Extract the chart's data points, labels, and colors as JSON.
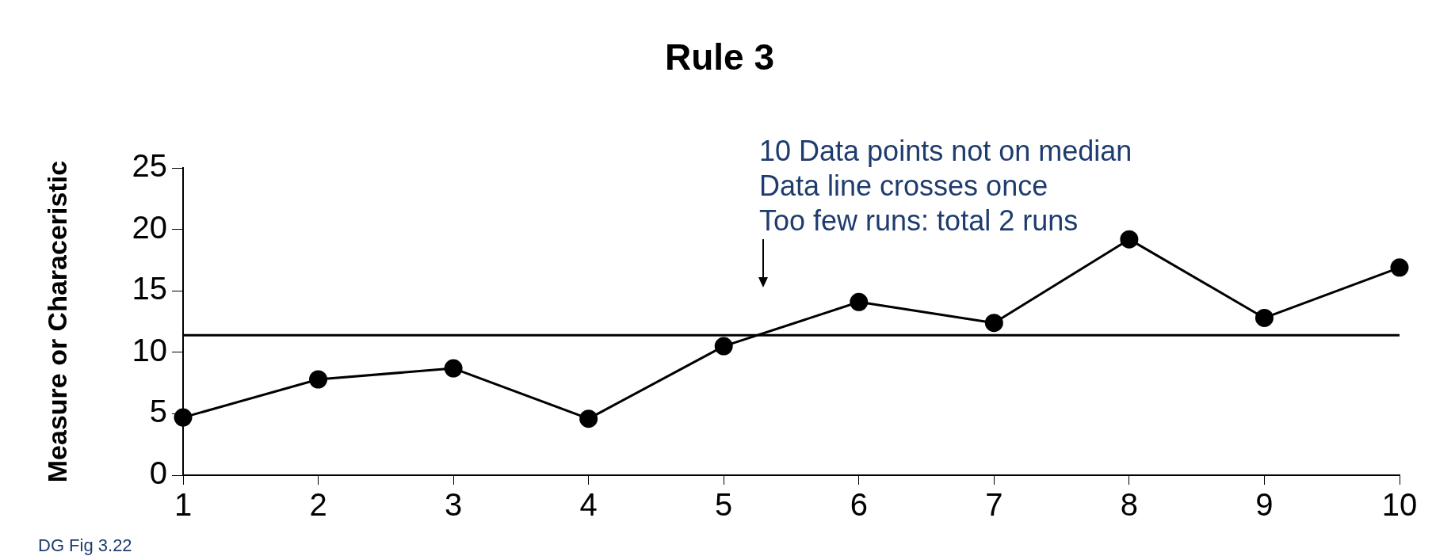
{
  "chart_data": {
    "type": "line",
    "title": "Rule 3",
    "ylabel": "Measure or Characeristic",
    "categories": [
      "1",
      "2",
      "3",
      "4",
      "5",
      "6",
      "7",
      "8",
      "9",
      "10"
    ],
    "series": [
      {
        "color": "#000000",
        "values": [
          4.7,
          7.8,
          8.7,
          4.6,
          10.5,
          14.1,
          12.4,
          19.2,
          12.8,
          16.9
        ]
      }
    ],
    "ylim": [
      0,
      25
    ],
    "yticks": [
      0,
      5,
      10,
      15,
      20,
      25
    ],
    "ref_lines": [
      {
        "axis": "y",
        "value": 11.4,
        "color": "#000000"
      }
    ],
    "annotations": [
      "10 Data points not on median",
      "Data line crosses once",
      "Too few runs: total 2 runs",
      "DG Fig 3.22"
    ],
    "marker": "circle",
    "line_style": "solid",
    "grid": false,
    "legend": false
  }
}
